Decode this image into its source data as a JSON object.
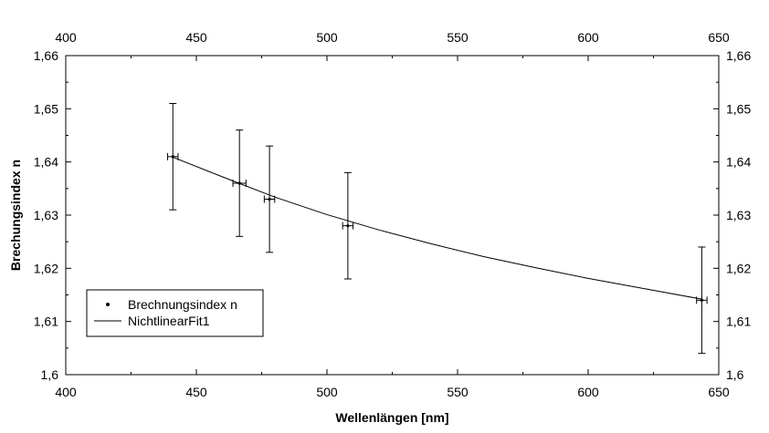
{
  "chart_data": {
    "type": "scatter",
    "xlabel": "Wellenlängen [nm]",
    "ylabel": "Brechungsindex n",
    "xlim": [
      400,
      650
    ],
    "ylim": [
      1.6,
      1.66
    ],
    "x_ticks": [
      "400",
      "450",
      "500",
      "550",
      "600",
      "650"
    ],
    "y_ticks": [
      "1,6",
      "1,61",
      "1,62",
      "1,63",
      "1,64",
      "1,65",
      "1,66"
    ],
    "grid": false,
    "mirror_axes": true,
    "legend_position": "bottom-left",
    "series": [
      {
        "name": "Brechnungsindex n",
        "kind": "points-with-error-bars",
        "points": [
          {
            "x": 441,
            "y": 1.641,
            "xerr": 2,
            "yerr": 0.01
          },
          {
            "x": 466.5,
            "y": 1.636,
            "xerr": 2.5,
            "yerr": 0.01
          },
          {
            "x": 478,
            "y": 1.633,
            "xerr": 2,
            "yerr": 0.01
          },
          {
            "x": 508,
            "y": 1.628,
            "xerr": 2,
            "yerr": 0.01
          },
          {
            "x": 643.5,
            "y": 1.614,
            "xerr": 2,
            "yerr": 0.01
          }
        ]
      },
      {
        "name": "NichtlinearFit1",
        "kind": "fit-line",
        "x": [
          441,
          460,
          480,
          500,
          520,
          540,
          560,
          580,
          600,
          620,
          643.5
        ],
        "y": [
          1.6409,
          1.6372,
          1.6334,
          1.6301,
          1.6272,
          1.6246,
          1.6222,
          1.6201,
          1.6181,
          1.6163,
          1.6142
        ]
      }
    ]
  }
}
